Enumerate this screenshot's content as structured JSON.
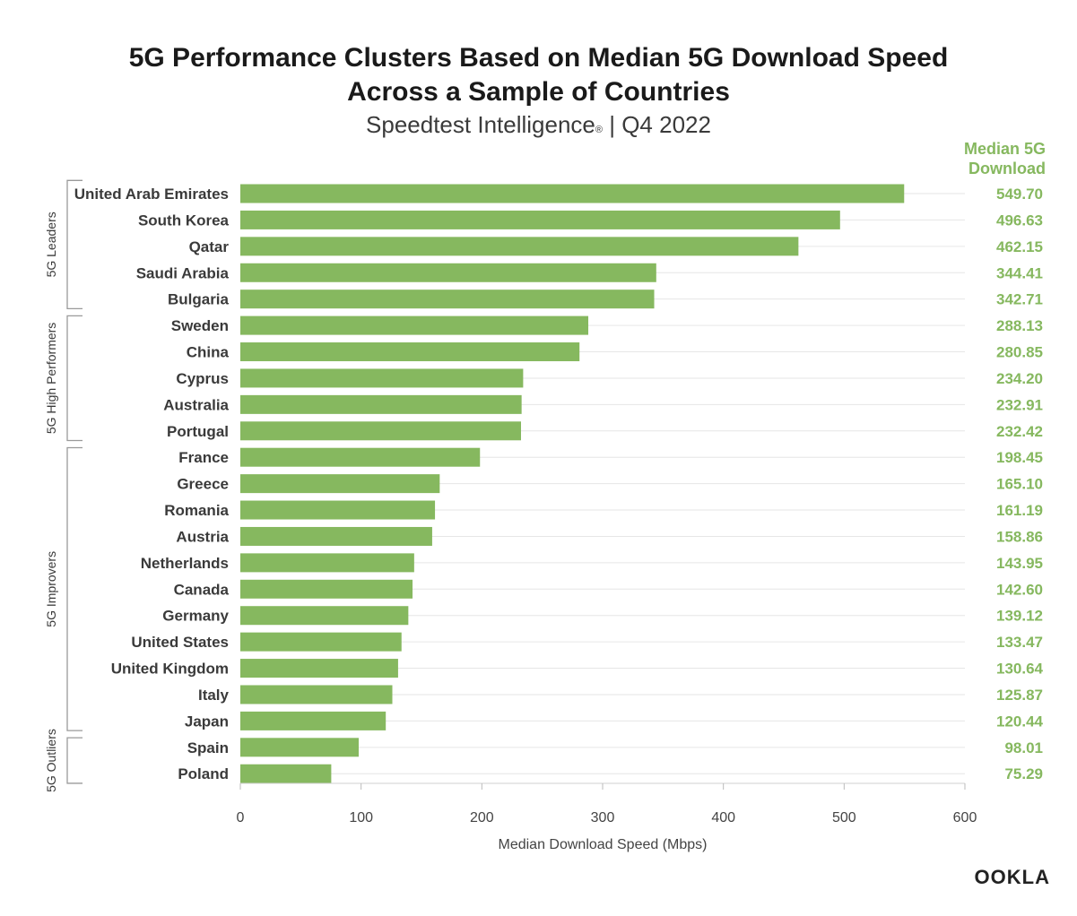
{
  "header": {
    "title_line1": "5G Performance Clusters Based on Median 5G Download Speed",
    "title_line2": "Across a Sample of Countries",
    "subtitle_main": "Speedtest Intelligence",
    "subtitle_mark": "®",
    "subtitle_period": " | Q4 2022"
  },
  "value_column_header": [
    "Median 5G",
    "Download"
  ],
  "logo": "OOKLA",
  "colors": {
    "bar": "#86b85f",
    "value_text": "#86b85f",
    "grid": "#e6e6e6",
    "label_text": "#3a3a3a",
    "bracket": "#9a9a9a"
  },
  "chart_data": {
    "type": "bar",
    "orientation": "horizontal",
    "title": "5G Performance Clusters Based on Median 5G Download Speed Across a Sample of Countries",
    "subtitle": "Speedtest Intelligence® | Q4 2022",
    "xlabel": "Median Download Speed (Mbps)",
    "ylabel": "",
    "xlim": [
      0,
      600
    ],
    "xticks": [
      0,
      100,
      200,
      300,
      400,
      500,
      600
    ],
    "grid": true,
    "categories": [
      "United Arab Emirates",
      "South Korea",
      "Qatar",
      "Saudi Arabia",
      "Bulgaria",
      "Sweden",
      "China",
      "Cyprus",
      "Australia",
      "Portugal",
      "France",
      "Greece",
      "Romania",
      "Austria",
      "Netherlands",
      "Canada",
      "Germany",
      "United States",
      "United Kingdom",
      "Italy",
      "Japan",
      "Spain",
      "Poland"
    ],
    "values": [
      549.7,
      496.63,
      462.15,
      344.41,
      342.71,
      288.13,
      280.85,
      234.2,
      232.91,
      232.42,
      198.45,
      165.1,
      161.19,
      158.86,
      143.95,
      142.6,
      139.12,
      133.47,
      130.64,
      125.87,
      120.44,
      98.01,
      75.29
    ],
    "value_labels": [
      "549.70",
      "496.63",
      "462.15",
      "344.41",
      "342.71",
      "288.13",
      "280.85",
      "234.20",
      "232.91",
      "232.42",
      "198.45",
      "165.10",
      "161.19",
      "158.86",
      "143.95",
      "142.60",
      "139.12",
      "133.47",
      "130.64",
      "125.87",
      "120.44",
      "98.01",
      "75.29"
    ],
    "groups": [
      {
        "name": "5G Leaders",
        "start": 0,
        "end": 4
      },
      {
        "name": "5G High Performers",
        "start": 5,
        "end": 9
      },
      {
        "name": "5G Improvers",
        "start": 10,
        "end": 20
      },
      {
        "name": "5G Outliers",
        "start": 21,
        "end": 22
      }
    ]
  }
}
